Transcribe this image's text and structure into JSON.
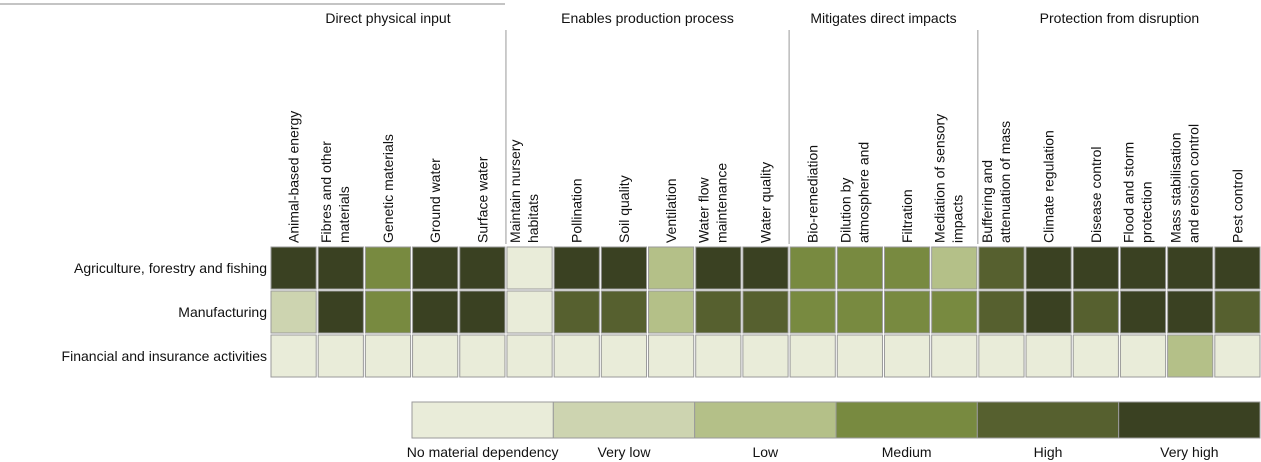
{
  "chart_data": {
    "type": "heatmap",
    "groups": [
      {
        "name": "Direct physical input",
        "columns": [
          [
            "Animal-based energy"
          ],
          [
            "Fibres and other",
            "materials"
          ],
          [
            "Genetic materials"
          ],
          [
            "Ground water"
          ],
          [
            "Surface water"
          ]
        ]
      },
      {
        "name": "Enables production process",
        "columns": [
          [
            "Maintain nursery",
            "habitats"
          ],
          [
            "Pollination"
          ],
          [
            "Soil quality"
          ],
          [
            "Ventilation"
          ],
          [
            "Water flow",
            "maintenance"
          ],
          [
            "Water quality"
          ]
        ]
      },
      {
        "name": "Mitigates direct impacts",
        "columns": [
          [
            "Bio-remediation"
          ],
          [
            "Dilution by",
            "atmosphere and"
          ],
          [
            "Filtration"
          ],
          [
            "Mediation of sensory",
            "impacts"
          ]
        ]
      },
      {
        "name": "Protection from disruption",
        "columns": [
          [
            "Buffering and",
            "attenuation of mass"
          ],
          [
            "Climate regulation"
          ],
          [
            "Disease control"
          ],
          [
            "Flood and storm",
            "protection"
          ],
          [
            "Mass stabilisation",
            "and erosion control"
          ],
          [
            "Pest control"
          ]
        ]
      }
    ],
    "rows": [
      "Agriculture, forestry and fishing",
      "Manufacturing",
      "Financial and insurance activities"
    ],
    "values": [
      [
        5,
        5,
        3,
        5,
        5,
        0,
        5,
        5,
        2,
        5,
        5,
        3,
        3,
        3,
        2,
        4,
        5,
        5,
        5,
        5,
        5
      ],
      [
        1,
        5,
        3,
        5,
        5,
        0,
        4,
        4,
        2,
        4,
        4,
        3,
        3,
        3,
        3,
        4,
        5,
        4,
        5,
        5,
        4
      ],
      [
        0,
        0,
        0,
        0,
        0,
        0,
        0,
        0,
        0,
        0,
        0,
        0,
        0,
        0,
        0,
        0,
        0,
        0,
        0,
        2,
        0
      ]
    ],
    "levels": [
      "No material dependency",
      "Very low",
      "Low",
      "Medium",
      "High",
      "Very high"
    ],
    "colors": [
      "#e9ecd9",
      "#cdd4b0",
      "#b4c088",
      "#788a40",
      "#56602f",
      "#3a4122"
    ]
  }
}
